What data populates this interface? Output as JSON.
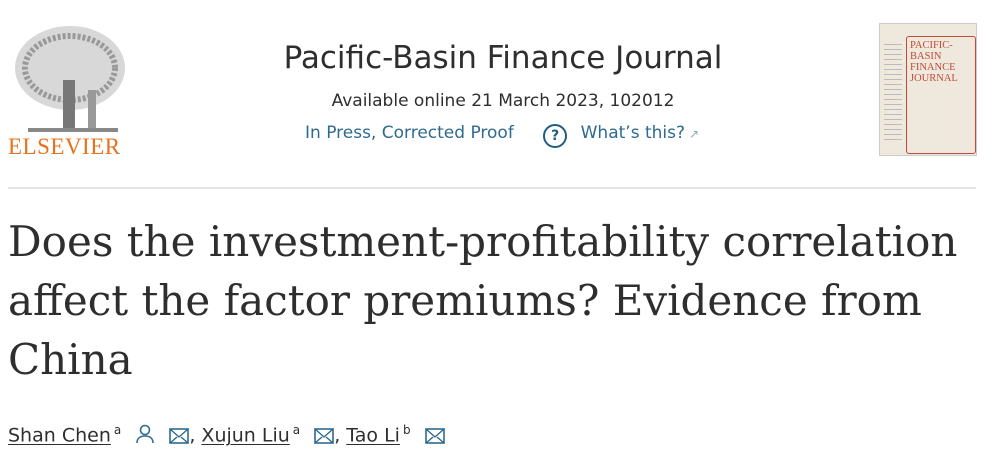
{
  "publisher": {
    "logo_text": "ELSEVIER"
  },
  "journal": {
    "title": "Pacific-Basin Finance Journal",
    "available": "Available online 21 March 2023, 102012",
    "status": "In Press, Corrected Proof",
    "whats_this": "What’s this?",
    "cover_text": "PACIFIC-BASIN FINANCE JOURNAL"
  },
  "article": {
    "title": "Does the investment-profitability correlation affect the factor premiums? Evidence from China",
    "authors": [
      {
        "name": "Shan Chen",
        "aff": "a"
      },
      {
        "name": "Xujun Liu",
        "aff": "a"
      },
      {
        "name": "Tao Li",
        "aff": "b"
      }
    ],
    "separator": ","
  },
  "colors": {
    "link": "#2e6a8f",
    "elsevier": "#e9711c",
    "icon": "#1f5c83"
  }
}
